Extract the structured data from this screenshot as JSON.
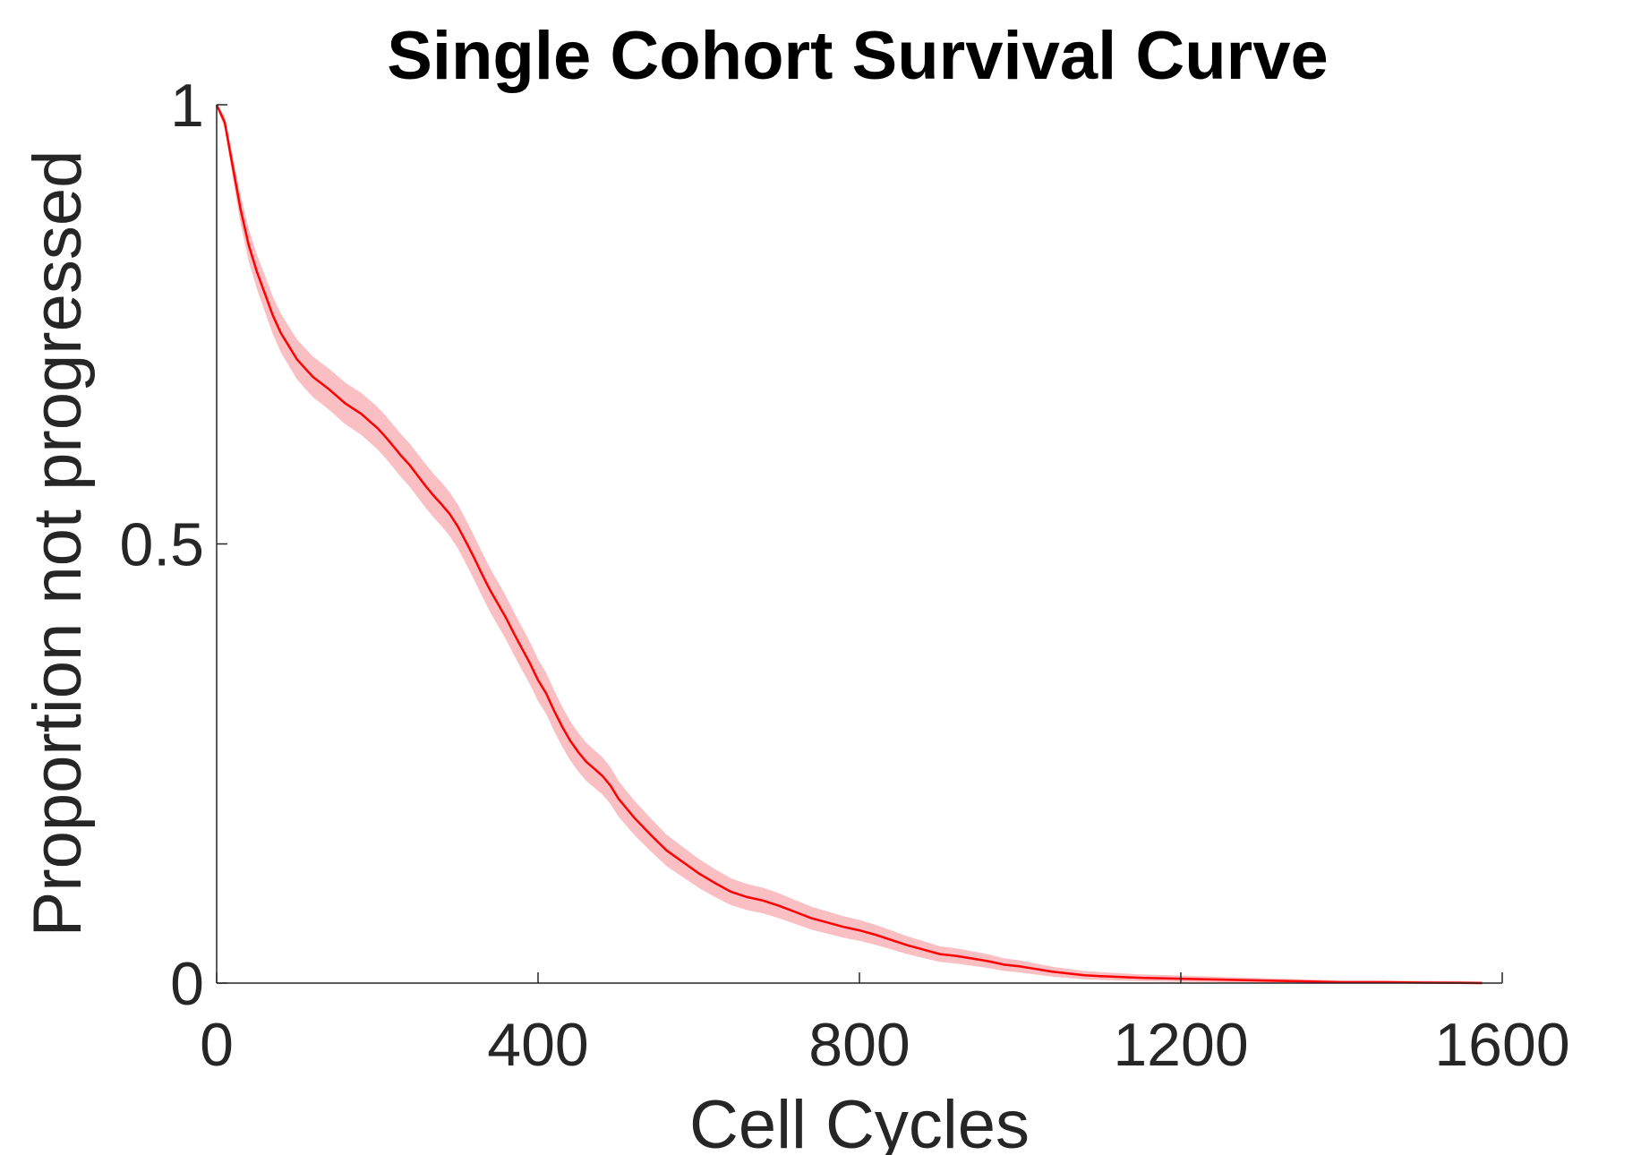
{
  "chart_data": {
    "type": "line",
    "title": "Single Cohort Survival Curve",
    "xlabel": "Cell Cycles",
    "ylabel": "Proportion not progressed",
    "xlim": [
      0,
      1600
    ],
    "ylim": [
      0,
      1
    ],
    "xticks": [
      0,
      400,
      800,
      1200,
      1600
    ],
    "xtick_labels": [
      "0",
      "400",
      "800",
      "1200",
      "1600"
    ],
    "yticks": [
      0,
      0.5,
      1
    ],
    "ytick_labels": [
      "0",
      "0.5",
      "1"
    ],
    "grid": false,
    "legend": "none",
    "series": [
      {
        "color": "#ff0000",
        "band_color": "#f8b4b8",
        "x": [
          0,
          10,
          20,
          30,
          40,
          50,
          60,
          70,
          80,
          90,
          100,
          110,
          120,
          130,
          140,
          150,
          160,
          170,
          180,
          190,
          200,
          210,
          220,
          230,
          240,
          250,
          260,
          270,
          280,
          290,
          300,
          310,
          320,
          330,
          340,
          350,
          360,
          370,
          380,
          390,
          400,
          410,
          420,
          430,
          440,
          450,
          460,
          470,
          480,
          490,
          500,
          520,
          540,
          560,
          580,
          600,
          620,
          640,
          660,
          680,
          700,
          720,
          740,
          760,
          780,
          800,
          820,
          840,
          860,
          880,
          900,
          920,
          940,
          960,
          980,
          1000,
          1020,
          1040,
          1060,
          1080,
          1100,
          1150,
          1200,
          1250,
          1300,
          1350,
          1400,
          1450,
          1500,
          1550,
          1575
        ],
        "y": [
          1.0,
          0.98,
          0.93,
          0.88,
          0.84,
          0.81,
          0.785,
          0.76,
          0.74,
          0.725,
          0.71,
          0.7,
          0.69,
          0.683,
          0.676,
          0.668,
          0.66,
          0.654,
          0.648,
          0.64,
          0.632,
          0.622,
          0.611,
          0.6,
          0.59,
          0.578,
          0.566,
          0.555,
          0.545,
          0.534,
          0.52,
          0.503,
          0.485,
          0.466,
          0.448,
          0.432,
          0.416,
          0.398,
          0.381,
          0.364,
          0.345,
          0.33,
          0.31,
          0.292,
          0.276,
          0.263,
          0.252,
          0.244,
          0.236,
          0.225,
          0.21,
          0.188,
          0.169,
          0.151,
          0.138,
          0.125,
          0.114,
          0.104,
          0.098,
          0.094,
          0.088,
          0.081,
          0.074,
          0.069,
          0.064,
          0.06,
          0.055,
          0.049,
          0.043,
          0.038,
          0.033,
          0.031,
          0.028,
          0.025,
          0.021,
          0.019,
          0.016,
          0.013,
          0.011,
          0.009,
          0.008,
          0.006,
          0.005,
          0.004,
          0.003,
          0.002,
          0.001,
          0.001,
          0.0005,
          0.0002,
          0.0
        ]
      }
    ]
  }
}
